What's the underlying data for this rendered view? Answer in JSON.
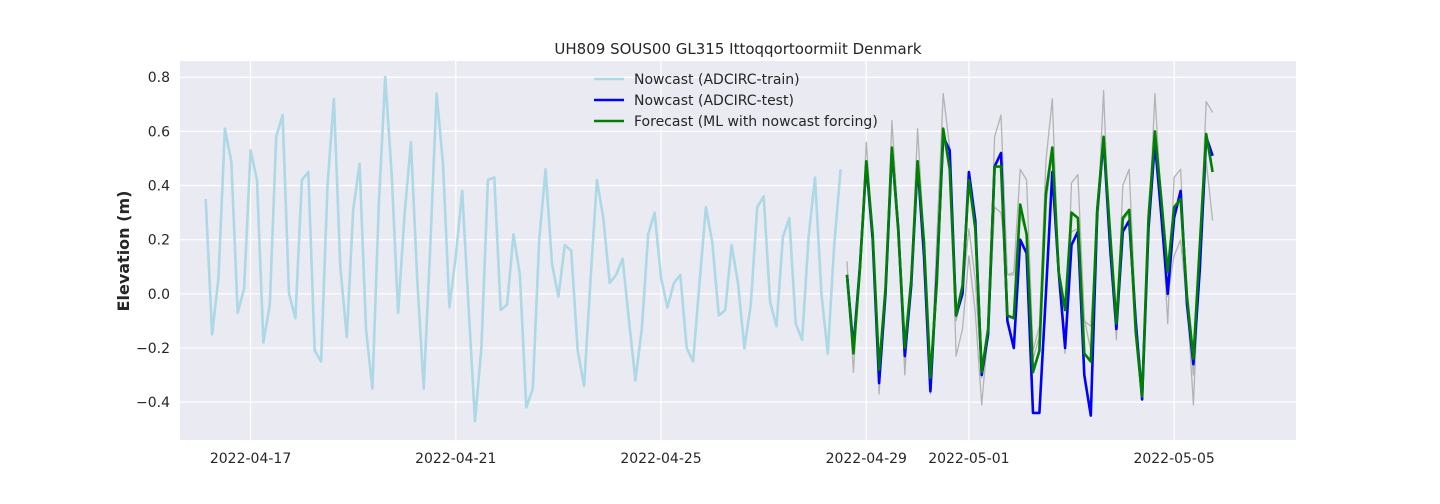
{
  "chart_data": {
    "type": "line",
    "title": "UH809 SOUS00 GL315 Ittoqqortoormiit Denmark",
    "xlabel": "",
    "ylabel": "Elevation (m)",
    "xlim": [
      "2022-04-15 15:00",
      "2022-05-07 09:00"
    ],
    "ylim": [
      -0.54,
      0.86
    ],
    "x_ticks": [
      "2022-04-17",
      "2022-04-21",
      "2022-04-25",
      "2022-04-29",
      "2022-05-01",
      "2022-05-05"
    ],
    "y_ticks": [
      "0.8",
      "0.6",
      "0.4",
      "0.2",
      "0.0",
      "−0.2",
      "−0.4"
    ],
    "grid": true,
    "legend_position": "top-center",
    "series": [
      {
        "name": "",
        "color": "#b3b3b3",
        "style": "thin",
        "start": "2022-04-28 15:00",
        "step_hours": 3,
        "values": [
          0.12,
          -0.29,
          0.1,
          0.56,
          0.22,
          -0.37,
          0.02,
          0.64,
          0.26,
          -0.3,
          0.07,
          0.61,
          0.2,
          -0.37,
          0.2,
          0.74,
          0.54,
          -0.23,
          -0.13,
          0.14,
          -0.07,
          -0.41,
          -0.14,
          0.58,
          0.66,
          0.07,
          0.08,
          0.46,
          0.42,
          -0.21,
          -0.12,
          0.49,
          0.72,
          0.08,
          -0.22,
          0.41,
          0.44,
          -0.09,
          -0.21,
          0.24,
          0.75,
          0.14,
          -0.17,
          0.4,
          0.46,
          -0.08,
          -0.36,
          0.22,
          0.74,
          0.33,
          -0.11,
          0.43,
          0.46,
          -0.02,
          -0.41,
          0.15,
          0.71,
          0.67
        ]
      },
      {
        "name": "",
        "color": "#b3b3b3",
        "style": "thin",
        "start": "2022-04-28 15:00",
        "step_hours": 3,
        "values": [
          0.07,
          -0.22,
          0.08,
          0.47,
          0.2,
          -0.3,
          0.0,
          0.52,
          0.22,
          -0.26,
          0.03,
          0.47,
          0.15,
          -0.33,
          0.07,
          0.6,
          0.5,
          -0.1,
          0.01,
          0.24,
          0.05,
          -0.31,
          -0.16,
          0.32,
          0.3,
          0.07,
          0.07,
          0.29,
          0.22,
          -0.24,
          -0.16,
          0.33,
          0.52,
          0.08,
          -0.16,
          0.23,
          0.24,
          -0.1,
          -0.12,
          0.24,
          0.57,
          0.14,
          -0.13,
          0.27,
          0.3,
          -0.1,
          -0.33,
          0.25,
          0.58,
          0.34,
          -0.01,
          0.14,
          0.2,
          -0.04,
          -0.3,
          0.1,
          0.49,
          0.27
        ]
      },
      {
        "name": "Nowcast (ADCIRC-train)",
        "color": "#add8e6",
        "style": "thick",
        "start": "2022-04-16 03:00",
        "step_hours": 3,
        "values": [
          0.35,
          -0.15,
          0.06,
          0.61,
          0.49,
          -0.07,
          0.02,
          0.53,
          0.42,
          -0.18,
          -0.04,
          0.58,
          0.66,
          0.0,
          -0.09,
          0.42,
          0.45,
          -0.21,
          -0.25,
          0.4,
          0.72,
          0.1,
          -0.16,
          0.31,
          0.48,
          -0.13,
          -0.35,
          0.33,
          0.8,
          0.44,
          -0.07,
          0.29,
          0.56,
          0.05,
          -0.35,
          0.16,
          0.74,
          0.48,
          -0.05,
          0.14,
          0.38,
          -0.05,
          -0.47,
          -0.2,
          0.42,
          0.43,
          -0.06,
          -0.04,
          0.22,
          0.07,
          -0.42,
          -0.35,
          0.2,
          0.46,
          0.11,
          -0.01,
          0.18,
          0.16,
          -0.21,
          -0.34,
          0.05,
          0.42,
          0.28,
          0.04,
          0.07,
          0.13,
          -0.1,
          -0.32,
          -0.13,
          0.22,
          0.3,
          0.06,
          -0.05,
          0.04,
          0.07,
          -0.2,
          -0.25,
          0.04,
          0.32,
          0.19,
          -0.08,
          -0.06,
          0.18,
          0.04,
          -0.2,
          -0.04,
          0.32,
          0.36,
          -0.03,
          -0.12,
          0.21,
          0.28,
          -0.11,
          -0.17,
          0.21,
          0.43,
          0.0,
          -0.22,
          0.18,
          0.46
        ]
      },
      {
        "name": "Nowcast (ADCIRC-test)",
        "color": "#0000ff",
        "style": "thick",
        "start": "2022-04-28 15:00",
        "step_hours": 3,
        "values": [
          0.07,
          -0.2,
          0.1,
          0.48,
          0.2,
          -0.33,
          0.0,
          0.53,
          0.24,
          -0.23,
          0.03,
          0.48,
          0.14,
          -0.36,
          0.07,
          0.58,
          0.53,
          -0.08,
          0.0,
          0.45,
          0.27,
          -0.3,
          -0.15,
          0.47,
          0.52,
          -0.1,
          -0.2,
          0.2,
          0.15,
          -0.44,
          -0.44,
          0.0,
          0.45,
          0.08,
          -0.2,
          0.18,
          0.23,
          -0.3,
          -0.45,
          0.3,
          0.57,
          0.18,
          -0.13,
          0.23,
          0.27,
          -0.1,
          -0.39,
          0.24,
          0.56,
          0.29,
          0.0,
          0.28,
          0.38,
          -0.04,
          -0.26,
          0.09,
          0.58,
          0.51
        ]
      },
      {
        "name": "Forecast (ML with nowcast forcing)",
        "color": "#008000",
        "style": "thick",
        "start": "2022-04-28 15:00",
        "step_hours": 3,
        "values": [
          0.07,
          -0.22,
          0.09,
          0.49,
          0.22,
          -0.28,
          0.02,
          0.54,
          0.23,
          -0.2,
          0.05,
          0.49,
          0.19,
          -0.31,
          0.04,
          0.61,
          0.46,
          -0.08,
          0.03,
          0.42,
          0.24,
          -0.29,
          -0.13,
          0.47,
          0.47,
          -0.08,
          -0.09,
          0.33,
          0.22,
          -0.29,
          -0.21,
          0.37,
          0.54,
          0.08,
          -0.06,
          0.3,
          0.28,
          -0.22,
          -0.25,
          0.31,
          0.58,
          0.23,
          -0.11,
          0.28,
          0.31,
          -0.14,
          -0.38,
          0.28,
          0.6,
          0.35,
          0.08,
          0.32,
          0.35,
          -0.01,
          -0.24,
          0.18,
          0.59,
          0.45
        ]
      }
    ]
  }
}
